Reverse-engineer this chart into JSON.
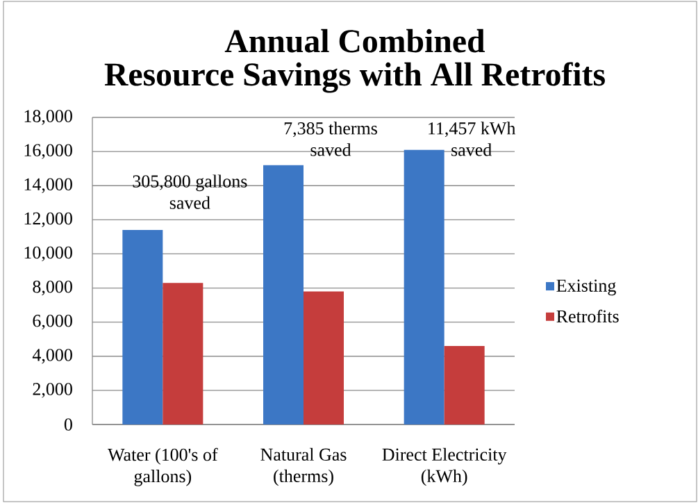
{
  "chart_data": {
    "type": "bar",
    "title": "Annual Combined Resource Savings with All Retrofits",
    "categories": [
      "Water (100's of gallons)",
      "Natural Gas (therms)",
      "Direct Electricity (kWh)"
    ],
    "series": [
      {
        "name": "Existing",
        "color": "#3c77c5",
        "values": [
          11400,
          15200,
          16100
        ]
      },
      {
        "name": "Retrofits",
        "color": "#c53d3c",
        "values": [
          8300,
          7800,
          4600
        ]
      }
    ],
    "ylim": [
      0,
      18000
    ],
    "yticks": [
      0,
      {
        "value": 2000,
        "label": "2,000"
      },
      {
        "value": 4000,
        "label": "4,000"
      },
      {
        "value": 6000,
        "label": "6,000"
      },
      {
        "value": 8000,
        "label": "8,000"
      },
      {
        "value": 10000,
        "label": "10,000"
      },
      {
        "value": 12000,
        "label": "12,000"
      },
      {
        "value": 14000,
        "label": "14,000"
      },
      {
        "value": 16000,
        "label": "16,000"
      },
      {
        "value": 18000,
        "label": "18,000"
      }
    ],
    "grid": "y",
    "legend": "right",
    "annotations": [
      "305,800 gallons saved",
      "7,385 therms saved",
      "11,457 kWh saved"
    ]
  }
}
